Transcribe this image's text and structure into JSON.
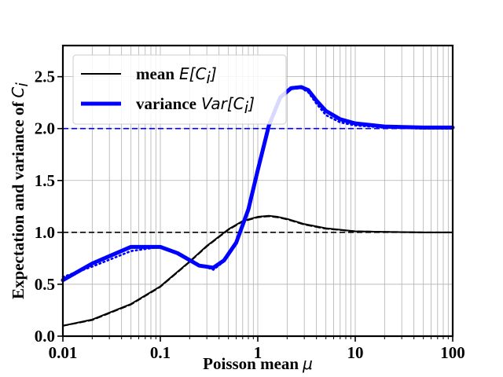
{
  "chart_data": {
    "type": "line",
    "xscale": "log",
    "xlim": [
      0.01,
      100
    ],
    "ylim": [
      0,
      2.8
    ],
    "xlabel": "Poisson mean",
    "xlabel_symbol": "μ",
    "ylabel": "Expectation and variance of",
    "ylabel_symbol": "C",
    "ylabel_subscript": "i",
    "x_ticks": [
      0.01,
      0.1,
      1,
      10,
      100
    ],
    "x_tick_labels": [
      "0.01",
      "0.1",
      "1",
      "10",
      "100"
    ],
    "y_ticks": [
      0,
      0.5,
      1,
      1.5,
      2,
      2.5
    ],
    "y_tick_labels": [
      "0.0",
      "0.5",
      "1.0",
      "1.5",
      "2.0",
      "2.5"
    ],
    "grid": true,
    "legend_position": "top-left",
    "reference_lines": [
      {
        "name": "variance-reference",
        "y": 2.0,
        "color": "#0000ff",
        "style": "dashed"
      },
      {
        "name": "mean-reference",
        "y": 1.0,
        "color": "#000000",
        "style": "dashed"
      }
    ],
    "series": [
      {
        "name": "mean",
        "legend_label": "mean",
        "legend_math": "E[C",
        "legend_sub": "i",
        "legend_close": "]",
        "color": "#000000",
        "style": "solid",
        "weight": "thin",
        "x": [
          0.01,
          0.02,
          0.05,
          0.1,
          0.2,
          0.3,
          0.5,
          0.7,
          1.0,
          1.3,
          1.6,
          2,
          3,
          5,
          10,
          20,
          50,
          100
        ],
        "values": [
          0.1,
          0.16,
          0.31,
          0.48,
          0.72,
          0.87,
          1.03,
          1.11,
          1.15,
          1.16,
          1.15,
          1.13,
          1.08,
          1.04,
          1.01,
          1.005,
          1.0,
          1.0
        ]
      },
      {
        "name": "mean-theory",
        "color": "#000000",
        "style": "dashed",
        "weight": "thin",
        "x": [
          0.01,
          0.02,
          0.05,
          0.1,
          0.2,
          0.3,
          0.5,
          0.7,
          1.0,
          1.3,
          1.6,
          2,
          3,
          5,
          10,
          20,
          50,
          100
        ],
        "values": [
          0.1,
          0.155,
          0.305,
          0.475,
          0.715,
          0.865,
          1.025,
          1.105,
          1.145,
          1.155,
          1.145,
          1.125,
          1.075,
          1.035,
          1.01,
          1.005,
          1.0,
          1.0
        ]
      },
      {
        "name": "variance",
        "legend_label": "variance",
        "legend_math": "Var[C",
        "legend_sub": "i",
        "legend_close": "]",
        "color": "#0000ff",
        "style": "solid",
        "weight": "thick",
        "x": [
          0.01,
          0.02,
          0.05,
          0.1,
          0.15,
          0.25,
          0.35,
          0.45,
          0.6,
          0.8,
          1.0,
          1.3,
          1.7,
          2.2,
          2.8,
          3.3,
          4,
          5,
          7,
          10,
          20,
          50,
          100
        ],
        "values": [
          0.54,
          0.7,
          0.86,
          0.86,
          0.8,
          0.68,
          0.66,
          0.73,
          0.9,
          1.22,
          1.6,
          2.03,
          2.3,
          2.39,
          2.4,
          2.37,
          2.27,
          2.17,
          2.09,
          2.05,
          2.02,
          2.01,
          2.01
        ]
      },
      {
        "name": "variance-theory",
        "color": "#0000ff",
        "style": "dotted",
        "weight": "medium",
        "x": [
          0.01,
          0.02,
          0.05,
          0.1,
          0.15,
          0.25,
          0.35,
          0.45,
          0.6,
          0.8,
          1.0,
          1.3,
          1.7,
          2.2,
          2.8,
          3.3,
          4,
          5,
          7,
          10,
          20,
          50,
          100
        ],
        "values": [
          0.57,
          0.67,
          0.82,
          0.86,
          0.81,
          0.69,
          0.64,
          0.72,
          0.9,
          1.22,
          1.6,
          2.03,
          2.3,
          2.38,
          2.39,
          2.35,
          2.24,
          2.13,
          2.06,
          2.03,
          2.01,
          2.0,
          2.0
        ]
      }
    ]
  }
}
